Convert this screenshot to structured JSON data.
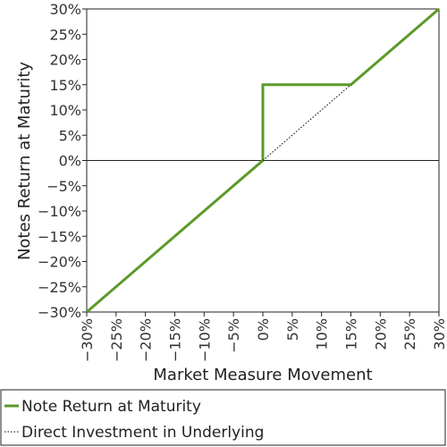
{
  "chart_data": {
    "type": "line",
    "title": "",
    "xlabel": "Market Measure Movement",
    "ylabel": "Notes Return at Maturity",
    "xlim": [
      -30,
      30
    ],
    "ylim": [
      -30,
      30
    ],
    "x_ticks": [
      -30,
      -25,
      -20,
      -15,
      -10,
      -5,
      0,
      5,
      10,
      15,
      20,
      25,
      30
    ],
    "y_ticks": [
      -30,
      -25,
      -20,
      -15,
      -10,
      -5,
      0,
      5,
      10,
      15,
      20,
      25,
      30
    ],
    "tick_labels_x": [
      "−30%",
      "−25%",
      "−20%",
      "−15%",
      "−10%",
      "−5%",
      "0%",
      "5%",
      "10%",
      "15%",
      "20%",
      "25%",
      "30%"
    ],
    "tick_labels_y": [
      "−30%",
      "−25%",
      "−20%",
      "−15%",
      "−10%",
      "−5%",
      "0%",
      "5%",
      "10%",
      "15%",
      "20%",
      "25%",
      "30%"
    ],
    "grid": false,
    "legend_position": "bottom",
    "series": [
      {
        "name": "Note Return at Maturity",
        "color": "#5b9a28",
        "style": "solid",
        "x": [
          -30,
          0,
          0,
          15,
          30
        ],
        "y": [
          -30,
          0,
          15,
          15,
          30
        ]
      },
      {
        "name": "Direct Investment in Underlying",
        "color": "#000000",
        "style": "dotted",
        "x": [
          0,
          15
        ],
        "y": [
          0,
          15
        ]
      }
    ]
  }
}
